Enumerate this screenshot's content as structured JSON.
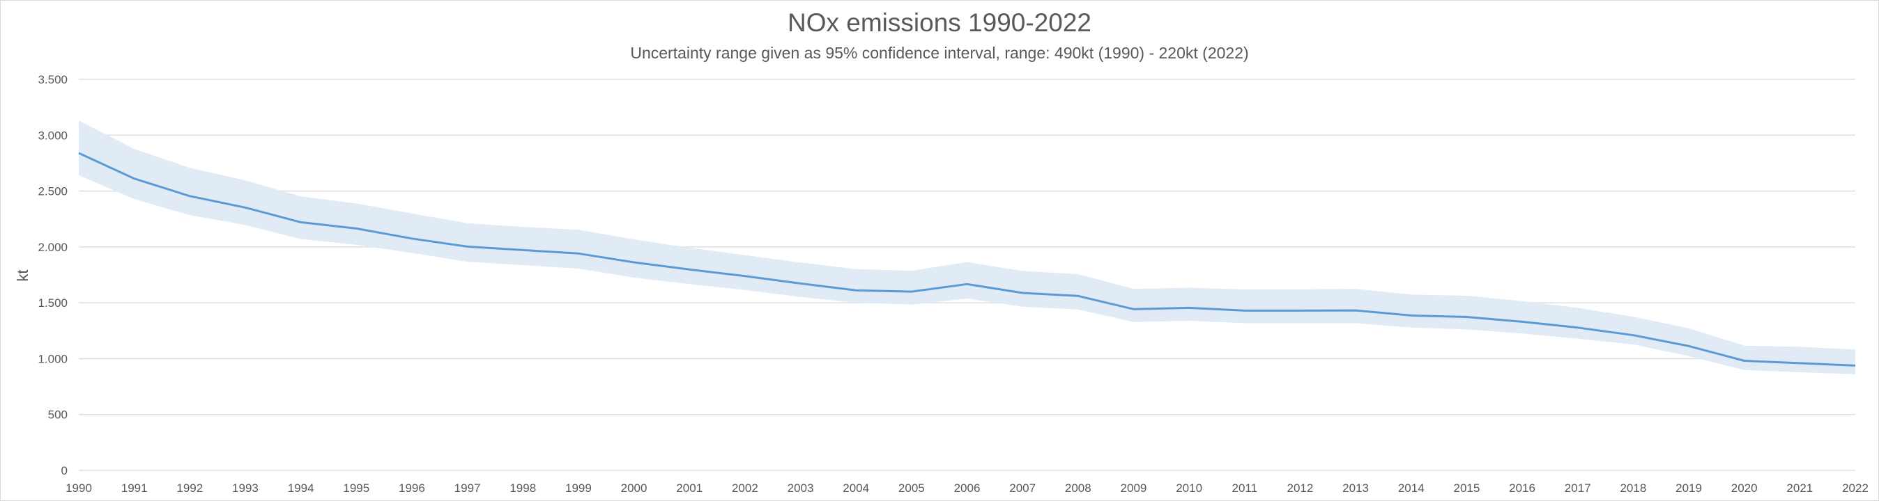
{
  "chart_data": {
    "type": "line",
    "title": "NOx emissions 1990-2022",
    "subtitle": "Uncertainty range given as 95% confidence interval, range: 490kt (1990) - 220kt (2022)",
    "xlabel": "",
    "ylabel": "kt",
    "ylim": [
      0,
      3500
    ],
    "yticks": [
      0,
      500,
      1000,
      1500,
      2000,
      2500,
      3000,
      3500
    ],
    "ytick_labels": [
      "0",
      "500",
      "1.000",
      "1.500",
      "2.000",
      "2.500",
      "3.000",
      "3.500"
    ],
    "grid": true,
    "legend": "none",
    "colors": {
      "line": "#5b9bd5",
      "band": "#deeaf6",
      "grid": "#d9d9d9",
      "text": "#595959"
    },
    "x": [
      "1990",
      "1991",
      "1992",
      "1993",
      "1994",
      "1995",
      "1996",
      "1997",
      "1998",
      "1999",
      "2000",
      "2001",
      "2002",
      "2003",
      "2004",
      "2005",
      "2006",
      "2007",
      "2008",
      "2009",
      "2010",
      "2011",
      "2012",
      "2013",
      "2014",
      "2015",
      "2016",
      "2017",
      "2018",
      "2019",
      "2020",
      "2021",
      "2022"
    ],
    "series": [
      {
        "name": "NOx emissions",
        "values": [
          2840,
          2611,
          2455,
          2352,
          2221,
          2165,
          2075,
          2003,
          1972,
          1941,
          1862,
          1798,
          1739,
          1673,
          1611,
          1600,
          1667,
          1588,
          1561,
          1443,
          1455,
          1430,
          1430,
          1432,
          1386,
          1373,
          1330,
          1278,
          1210,
          1113,
          981,
          960,
          938
        ]
      },
      {
        "name": "Upper bound (95% CI)",
        "values": [
          3130,
          2877,
          2708,
          2596,
          2452,
          2389,
          2299,
          2212,
          2179,
          2154,
          2067,
          1993,
          1926,
          1860,
          1802,
          1787,
          1864,
          1785,
          1756,
          1625,
          1635,
          1619,
          1619,
          1625,
          1573,
          1563,
          1515,
          1455,
          1376,
          1272,
          1116,
          1106,
          1081
        ]
      },
      {
        "name": "Lower bound (95% CI)",
        "values": [
          2642,
          2428,
          2285,
          2196,
          2071,
          2019,
          1946,
          1868,
          1837,
          1806,
          1725,
          1667,
          1614,
          1552,
          1501,
          1484,
          1538,
          1465,
          1440,
          1328,
          1339,
          1318,
          1318,
          1318,
          1278,
          1262,
          1225,
          1179,
          1127,
          1023,
          898,
          878,
          861
        ]
      }
    ]
  }
}
